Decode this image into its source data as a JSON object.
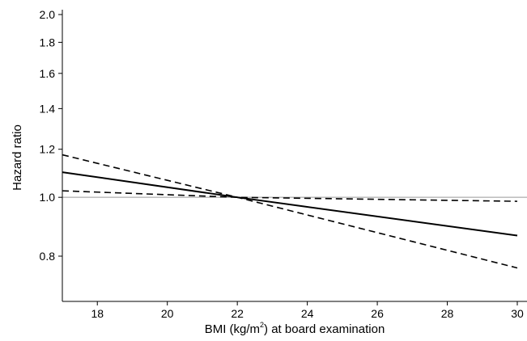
{
  "chart_data": {
    "type": "line",
    "xlabel_parts": [
      "BMI (kg/m",
      "2",
      ") at board examination"
    ],
    "ylabel": "Hazard ratio",
    "x_ticks": [
      18,
      20,
      22,
      24,
      26,
      28,
      30
    ],
    "y_ticks": [
      0.8,
      1.0,
      1.2,
      1.4,
      1.6,
      1.8,
      2.0
    ],
    "y_tick_labels": [
      "0.8",
      "1.0",
      "1.2",
      "1.4",
      "1.6",
      "1.8",
      "2.0"
    ],
    "xlim": [
      17,
      30
    ],
    "ylim": [
      0.7,
      2.05
    ],
    "y_scale": "log",
    "reference_line": 1.0,
    "series": [
      {
        "style": "solid",
        "x": [
          17,
          22,
          30
        ],
        "y": [
          1.1,
          1.0,
          0.865
        ]
      },
      {
        "style": "dashed",
        "x": [
          17,
          22,
          30
        ],
        "y": [
          1.175,
          1.0,
          0.765
        ]
      },
      {
        "style": "dashed",
        "x": [
          17,
          22,
          30
        ],
        "y": [
          1.025,
          1.0,
          0.985
        ]
      }
    ]
  }
}
